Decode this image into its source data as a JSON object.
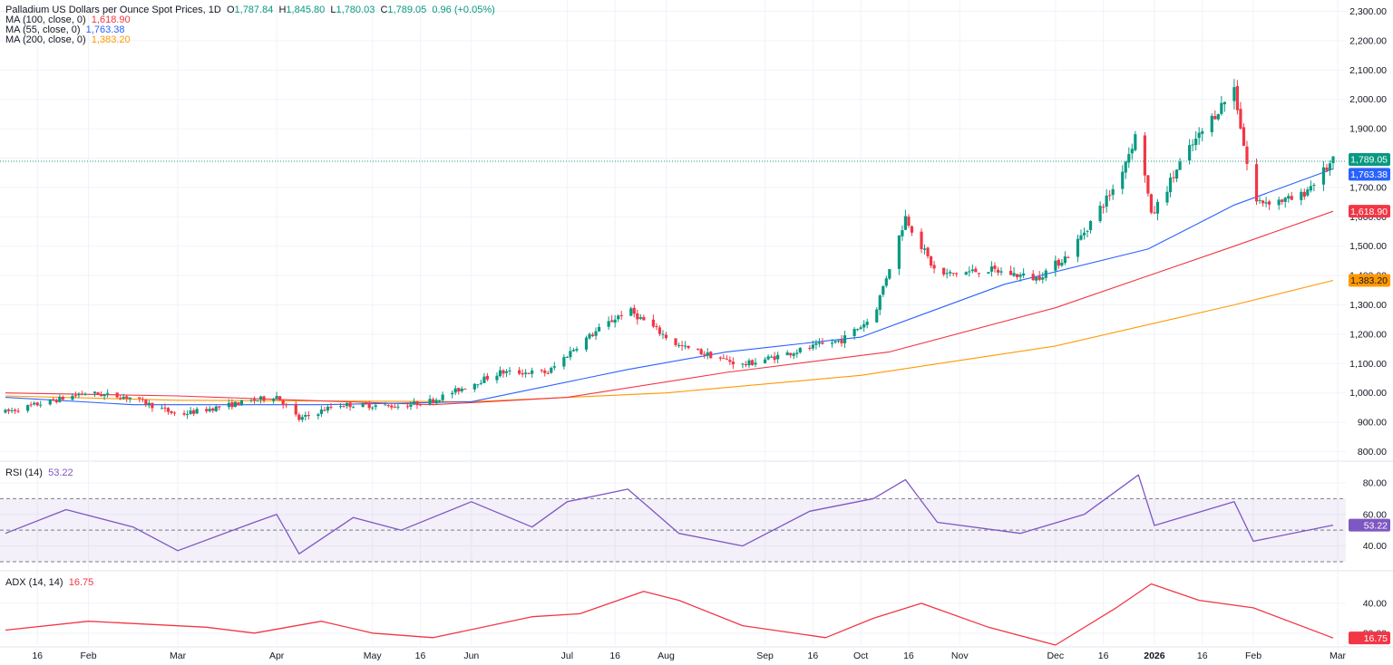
{
  "legend": {
    "symbol": "Palladium US Dollars per Ounce Spot Prices, 1D",
    "o_label": "O",
    "o": "1,787.84",
    "h_label": "H",
    "h": "1,845.80",
    "l_label": "L",
    "l": "1,780.03",
    "c_label": "C",
    "c": "1,789.05",
    "change": "0.96 (+0.05%)",
    "ma100_label": "MA (100, close, 0)",
    "ma100_value": "1,618.90",
    "ma55_label": "MA (55, close, 0)",
    "ma55_value": "1,763.38",
    "ma200_label": "MA (200, close, 0)",
    "ma200_value": "1,383.20"
  },
  "rsi_legend": {
    "label": "RSI (14)",
    "value": "53.22"
  },
  "adx_legend": {
    "label": "ADX (14, 14)",
    "value": "16.75"
  },
  "colors": {
    "up": "#089981",
    "down": "#f23645",
    "ma55": "#2962ff",
    "ma100": "#f23645",
    "ma200": "#ff9800",
    "rsi": "#7e57c2",
    "adx": "#f23645"
  },
  "chart_data": [
    {
      "type": "candlestick",
      "title": "Palladium US Dollars per Ounce Spot Prices, 1D",
      "ylim": [
        780,
        2320
      ],
      "y_ticks": [
        "800.00",
        "900.00",
        "1,000.00",
        "1,100.00",
        "1,200.00",
        "1,300.00",
        "1,400.00",
        "1,500.00",
        "1,600.00",
        "1,700.00",
        "1,800.00",
        "1,900.00",
        "2,000.00",
        "2,100.00",
        "2,200.00",
        "2,300.00"
      ],
      "x_ticks": [
        "16",
        "Feb",
        "Mar",
        "Apr",
        "May",
        "16",
        "Jun",
        "Jul",
        "16",
        "Aug",
        "Sep",
        "16",
        "Oct",
        "16",
        "Nov",
        "Dec",
        "16",
        "2026",
        "16",
        "Feb",
        "Mar"
      ],
      "price_tags": [
        {
          "name": "last",
          "value": "1,789.05",
          "y": 1789.05
        },
        {
          "name": "ma55",
          "value": "1,763.38",
          "y": 1763.38
        },
        {
          "name": "ma100",
          "value": "1,618.90",
          "y": 1618.9
        },
        {
          "name": "ma200",
          "value": "1,383.20",
          "y": 1383.2
        }
      ],
      "key_points": [
        {
          "x": "2025-01-06",
          "y": 935
        },
        {
          "x": "2025-01-31",
          "y": 1000
        },
        {
          "x": "2025-02-14",
          "y": 985
        },
        {
          "x": "2025-03-01",
          "y": 925
        },
        {
          "x": "2025-03-25",
          "y": 975
        },
        {
          "x": "2025-04-01",
          "y": 990
        },
        {
          "x": "2025-04-08",
          "y": 910
        },
        {
          "x": "2025-04-20",
          "y": 960
        },
        {
          "x": "2025-05-10",
          "y": 955
        },
        {
          "x": "2025-05-20",
          "y": 975
        },
        {
          "x": "2025-06-10",
          "y": 1070
        },
        {
          "x": "2025-06-25",
          "y": 1070
        },
        {
          "x": "2025-07-05",
          "y": 1170
        },
        {
          "x": "2025-07-20",
          "y": 1285
        },
        {
          "x": "2025-08-05",
          "y": 1160
        },
        {
          "x": "2025-08-25",
          "y": 1095
        },
        {
          "x": "2025-09-10",
          "y": 1140
        },
        {
          "x": "2025-09-25",
          "y": 1180
        },
        {
          "x": "2025-10-05",
          "y": 1260
        },
        {
          "x": "2025-10-15",
          "y": 1600
        },
        {
          "x": "2025-10-25",
          "y": 1400
        },
        {
          "x": "2025-11-10",
          "y": 1420
        },
        {
          "x": "2025-11-25",
          "y": 1390
        },
        {
          "x": "2025-12-05",
          "y": 1470
        },
        {
          "x": "2025-12-20",
          "y": 1710
        },
        {
          "x": "2025-12-27",
          "y": 1900
        },
        {
          "x": "2025-12-31",
          "y": 1600
        },
        {
          "x": "2026-01-10",
          "y": 1800
        },
        {
          "x": "2026-01-26",
          "y": 2040
        },
        {
          "x": "2026-02-01",
          "y": 1650
        },
        {
          "x": "2026-02-15",
          "y": 1660
        },
        {
          "x": "2026-02-26",
          "y": 1789.05
        }
      ],
      "ma55": [
        {
          "x": "2025-01-06",
          "y": 985
        },
        {
          "x": "2025-02-15",
          "y": 960
        },
        {
          "x": "2025-04-15",
          "y": 960
        },
        {
          "x": "2025-06-01",
          "y": 970
        },
        {
          "x": "2025-07-20",
          "y": 1080
        },
        {
          "x": "2025-08-20",
          "y": 1140
        },
        {
          "x": "2025-10-01",
          "y": 1190
        },
        {
          "x": "2025-11-15",
          "y": 1370
        },
        {
          "x": "2025-12-30",
          "y": 1490
        },
        {
          "x": "2026-01-26",
          "y": 1640
        },
        {
          "x": "2026-02-26",
          "y": 1763.38
        }
      ],
      "ma100": [
        {
          "x": "2025-01-06",
          "y": 1000
        },
        {
          "x": "2025-03-01",
          "y": 990
        },
        {
          "x": "2025-05-20",
          "y": 960
        },
        {
          "x": "2025-07-01",
          "y": 985
        },
        {
          "x": "2025-08-20",
          "y": 1070
        },
        {
          "x": "2025-10-10",
          "y": 1140
        },
        {
          "x": "2025-12-01",
          "y": 1290
        },
        {
          "x": "2026-01-26",
          "y": 1500
        },
        {
          "x": "2026-02-26",
          "y": 1618.9
        }
      ],
      "ma200": [
        {
          "x": "2025-01-06",
          "y": 990
        },
        {
          "x": "2025-03-01",
          "y": 975
        },
        {
          "x": "2025-06-01",
          "y": 970
        },
        {
          "x": "2025-08-01",
          "y": 1000
        },
        {
          "x": "2025-10-01",
          "y": 1060
        },
        {
          "x": "2025-12-01",
          "y": 1160
        },
        {
          "x": "2026-01-26",
          "y": 1300
        },
        {
          "x": "2026-02-26",
          "y": 1383.2
        }
      ]
    },
    {
      "type": "line",
      "title": "RSI (14)",
      "ylim": [
        26,
        92
      ],
      "y_ticks": [
        "40.00",
        "60.00",
        "80.00"
      ],
      "bands": [
        30,
        50,
        70
      ],
      "last_value": "53.22",
      "points": [
        {
          "x": "2025-01-06",
          "y": 48
        },
        {
          "x": "2025-01-25",
          "y": 63
        },
        {
          "x": "2025-02-15",
          "y": 52
        },
        {
          "x": "2025-03-01",
          "y": 37
        },
        {
          "x": "2025-03-25",
          "y": 55
        },
        {
          "x": "2025-04-01",
          "y": 60
        },
        {
          "x": "2025-04-08",
          "y": 35
        },
        {
          "x": "2025-04-25",
          "y": 58
        },
        {
          "x": "2025-05-10",
          "y": 50
        },
        {
          "x": "2025-06-01",
          "y": 68
        },
        {
          "x": "2025-06-20",
          "y": 52
        },
        {
          "x": "2025-07-01",
          "y": 68
        },
        {
          "x": "2025-07-20",
          "y": 76
        },
        {
          "x": "2025-08-05",
          "y": 48
        },
        {
          "x": "2025-08-25",
          "y": 40
        },
        {
          "x": "2025-09-15",
          "y": 62
        },
        {
          "x": "2025-10-05",
          "y": 70
        },
        {
          "x": "2025-10-15",
          "y": 82
        },
        {
          "x": "2025-10-25",
          "y": 55
        },
        {
          "x": "2025-11-20",
          "y": 48
        },
        {
          "x": "2025-12-10",
          "y": 60
        },
        {
          "x": "2025-12-27",
          "y": 85
        },
        {
          "x": "2026-01-01",
          "y": 53
        },
        {
          "x": "2026-01-26",
          "y": 68
        },
        {
          "x": "2026-02-01",
          "y": 43
        },
        {
          "x": "2026-02-26",
          "y": 53.22
        }
      ]
    },
    {
      "type": "line",
      "title": "ADX (14, 14)",
      "ylim": [
        12,
        60
      ],
      "y_ticks": [
        "20.00",
        "40.00"
      ],
      "last_value": "16.75",
      "points": [
        {
          "x": "2025-01-06",
          "y": 22
        },
        {
          "x": "2025-02-01",
          "y": 28
        },
        {
          "x": "2025-03-10",
          "y": 24
        },
        {
          "x": "2025-03-25",
          "y": 20
        },
        {
          "x": "2025-04-15",
          "y": 28
        },
        {
          "x": "2025-05-01",
          "y": 20
        },
        {
          "x": "2025-05-20",
          "y": 17
        },
        {
          "x": "2025-06-20",
          "y": 31
        },
        {
          "x": "2025-07-05",
          "y": 33
        },
        {
          "x": "2025-07-25",
          "y": 48
        },
        {
          "x": "2025-08-05",
          "y": 42
        },
        {
          "x": "2025-08-25",
          "y": 25
        },
        {
          "x": "2025-09-20",
          "y": 17
        },
        {
          "x": "2025-10-05",
          "y": 30
        },
        {
          "x": "2025-10-20",
          "y": 40
        },
        {
          "x": "2025-11-10",
          "y": 24
        },
        {
          "x": "2025-12-01",
          "y": 12
        },
        {
          "x": "2025-12-20",
          "y": 37
        },
        {
          "x": "2025-12-31",
          "y": 53
        },
        {
          "x": "2026-01-15",
          "y": 42
        },
        {
          "x": "2026-02-01",
          "y": 37
        },
        {
          "x": "2026-02-26",
          "y": 16.75
        }
      ]
    }
  ]
}
